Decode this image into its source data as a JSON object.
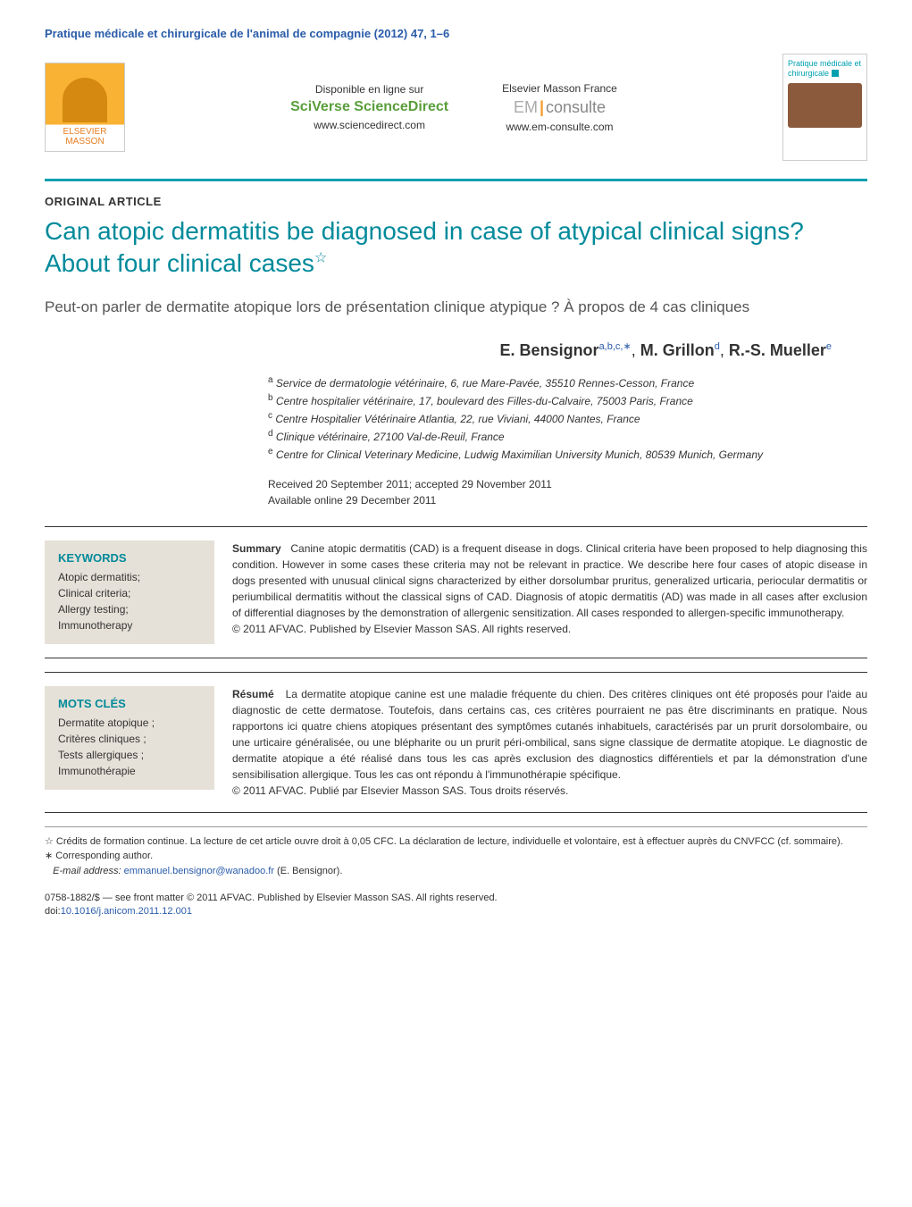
{
  "citation": "Pratique médicale et chirurgicale de l'animal de compagnie (2012) 47, 1–6",
  "header": {
    "publisher_name": "ELSEVIER MASSON",
    "left_col": {
      "line1": "Disponible en ligne sur",
      "brand": "SciVerse ScienceDirect",
      "url": "www.sciencedirect.com"
    },
    "right_col": {
      "line1": "Elsevier Masson France",
      "brand_em": "EM",
      "brand_consulte": "consulte",
      "url": "www.em-consulte.com"
    },
    "cover_title": "Pratique médicale et chirurgicale"
  },
  "article_type": "ORIGINAL ARTICLE",
  "title": "Can atopic dermatitis be diagnosed in case of atypical clinical signs? About four clinical cases",
  "title_star": "☆",
  "subtitle": "Peut-on parler de dermatite atopique lors de présentation clinique atypique ? À propos de 4 cas cliniques",
  "authors_line": {
    "a1_name": "E. Bensignor",
    "a1_sup": "a,b,c,",
    "a1_corr": "∗",
    "sep1": ", ",
    "a2_name": "M. Grillon",
    "a2_sup": "d",
    "sep2": ", ",
    "a3_name": "R.-S. Mueller",
    "a3_sup": "e"
  },
  "affiliations": {
    "a": "Service de dermatologie vétérinaire, 6, rue Mare-Pavée, 35510 Rennes-Cesson, France",
    "b": "Centre hospitalier vétérinaire, 17, boulevard des Filles-du-Calvaire, 75003 Paris, France",
    "c": "Centre Hospitalier Vétérinaire Atlantia, 22, rue Viviani, 44000 Nantes, France",
    "d": "Clinique vétérinaire, 27100 Val-de-Reuil, France",
    "e": "Centre for Clinical Veterinary Medicine, Ludwig Maximilian University Munich, 80539 Munich, Germany"
  },
  "dates": {
    "received_accepted": "Received 20 September 2011; accepted 29 November 2011",
    "online": "Available online 29 December 2011"
  },
  "abstract_en": {
    "kw_title": "KEYWORDS",
    "keywords": "Atopic dermatitis;\nClinical criteria;\nAllergy testing;\nImmunotherapy",
    "lead": "Summary",
    "body": "Canine atopic dermatitis (CAD) is a frequent disease in dogs. Clinical criteria have been proposed to help diagnosing this condition. However in some cases these criteria may not be relevant in practice. We describe here four cases of atopic disease in dogs presented with unusual clinical signs characterized by either dorsolumbar pruritus, generalized urticaria, periocular dermatitis or periumbilical dermatitis without the classical signs of CAD. Diagnosis of atopic dermatitis (AD) was made in all cases after exclusion of differential diagnoses by the demonstration of allergenic sensitization. All cases responded to allergen-specific immunotherapy.",
    "copyright": "© 2011 AFVAC. Published by Elsevier Masson SAS. All rights reserved."
  },
  "abstract_fr": {
    "kw_title": "MOTS CLÉS",
    "keywords": "Dermatite atopique ;\nCritères cliniques ;\nTests allergiques ;\nImmunothérapie",
    "lead": "Résumé",
    "body": "La dermatite atopique canine est une maladie fréquente du chien. Des critères cliniques ont été proposés pour l'aide au diagnostic de cette dermatose. Toutefois, dans certains cas, ces critères pourraient ne pas être discriminants en pratique. Nous rapportons ici quatre chiens atopiques présentant des symptômes cutanés inhabituels, caractérisés par un prurit dorsolombaire, ou une urticaire généralisée, ou une blépharite ou un prurit péri-ombilical, sans signe classique de dermatite atopique. Le diagnostic de dermatite atopique a été réalisé dans tous les cas après exclusion des diagnostics différentiels et par la démonstration d'une sensibilisation allergique. Tous les cas ont répondu à l'immunothérapie spécifique.",
    "copyright": "© 2011 AFVAC. Publié par Elsevier Masson SAS. Tous droits réservés."
  },
  "footnotes": {
    "credit": "☆ Crédits de formation continue. La lecture de cet article ouvre droit à 0,05 CFC. La déclaration de lecture, individuelle et volontaire, est à effectuer auprès du CNVFCC (cf. sommaire).",
    "corr_label": "∗ Corresponding author.",
    "email_label": "E-mail address:",
    "email": "emmanuel.bensignor@wanadoo.fr",
    "email_attrib": " (E. Bensignor)."
  },
  "footer": {
    "front_matter": "0758-1882/$ — see front matter © 2011 AFVAC. Published by Elsevier Masson SAS. All rights reserved.",
    "doi_label": "doi:",
    "doi": "10.1016/j.anicom.2011.12.001"
  },
  "colors": {
    "accent_teal": "#008a9b",
    "link_blue": "#2a5caa",
    "bar_teal": "#00a0b0",
    "kw_bg": "#e6e1d8"
  }
}
